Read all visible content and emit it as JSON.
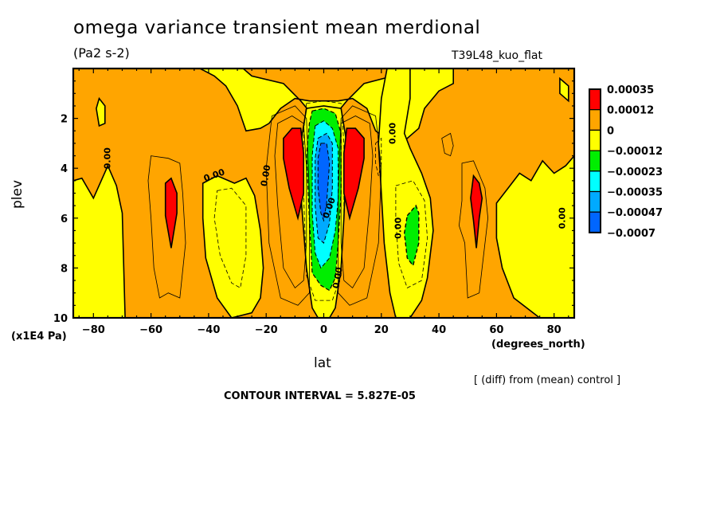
{
  "chart_data": {
    "type": "heatmap",
    "subtype": "filled-contour",
    "title": "omega variance transient mean merdional",
    "units": "(Pa2 s-2)",
    "experiment": "T39L48_kuo_flat",
    "xlabel": "lat",
    "xunits": "(degrees_north)",
    "ylabel": "plev",
    "yunits": "(x1E4 Pa)",
    "xlim": [
      -87,
      87
    ],
    "ylim": [
      10,
      0
    ],
    "x_ticks": [
      -80,
      -60,
      -40,
      -20,
      0,
      20,
      40,
      60,
      80
    ],
    "x_tick_labels": [
      "-80",
      "-60",
      "-40",
      "-20",
      "0",
      "20",
      "40",
      "60",
      "80"
    ],
    "y_ticks": [
      2,
      4,
      6,
      8,
      10
    ],
    "y_tick_labels": [
      "2",
      "4",
      "6",
      "8",
      "10"
    ],
    "contour_interval": "5.827E-05",
    "contour_label": "0.00",
    "annotation": "[ (diff) from (mean) control ]",
    "legend": {
      "position": "right",
      "levels": [
        {
          "label": "0.00035",
          "color": "#ff0000"
        },
        {
          "label": "0.00012",
          "color": "#ffa500"
        },
        {
          "label": "0",
          "color": "#ffff00"
        },
        {
          "label": "−0.00012",
          "color": "#00ee00"
        },
        {
          "label": "−0.00023",
          "color": "#00ffff"
        },
        {
          "label": "−0.00035",
          "color": "#00aaff"
        },
        {
          "label": "−0.00047",
          "color": "#0066ff"
        },
        {
          "label": "−0.0007",
          "color": ""
        }
      ]
    },
    "features": [
      {
        "name": "red-max-sh-midlat",
        "lat": -53,
        "plev": [
          4.7,
          7.2
        ],
        "sign": "positive"
      },
      {
        "name": "red-max-sh-subtrop",
        "lat": -11,
        "plev": [
          2.5,
          6.0
        ],
        "sign": "positive"
      },
      {
        "name": "red-max-nh-subtrop",
        "lat": 11,
        "plev": [
          2.5,
          6.0
        ],
        "sign": "positive"
      },
      {
        "name": "red-max-nh-midlat",
        "lat": 53,
        "plev": [
          4.5,
          7.2
        ],
        "sign": "positive"
      },
      {
        "name": "blue-min-equator",
        "lat": 0,
        "plev": [
          2.0,
          8.5
        ],
        "sign": "negative"
      },
      {
        "name": "green-min-nh-subtrop",
        "lat": 31,
        "plev": [
          5.4,
          7.8
        ],
        "sign": "negative"
      }
    ]
  },
  "colors": {
    "red": "#ff0000",
    "orange": "#ffa500",
    "yellow": "#ffff00",
    "green": "#00ee00",
    "cyan": "#00ffff",
    "lightblue": "#00aaff",
    "blue": "#0066ff"
  }
}
